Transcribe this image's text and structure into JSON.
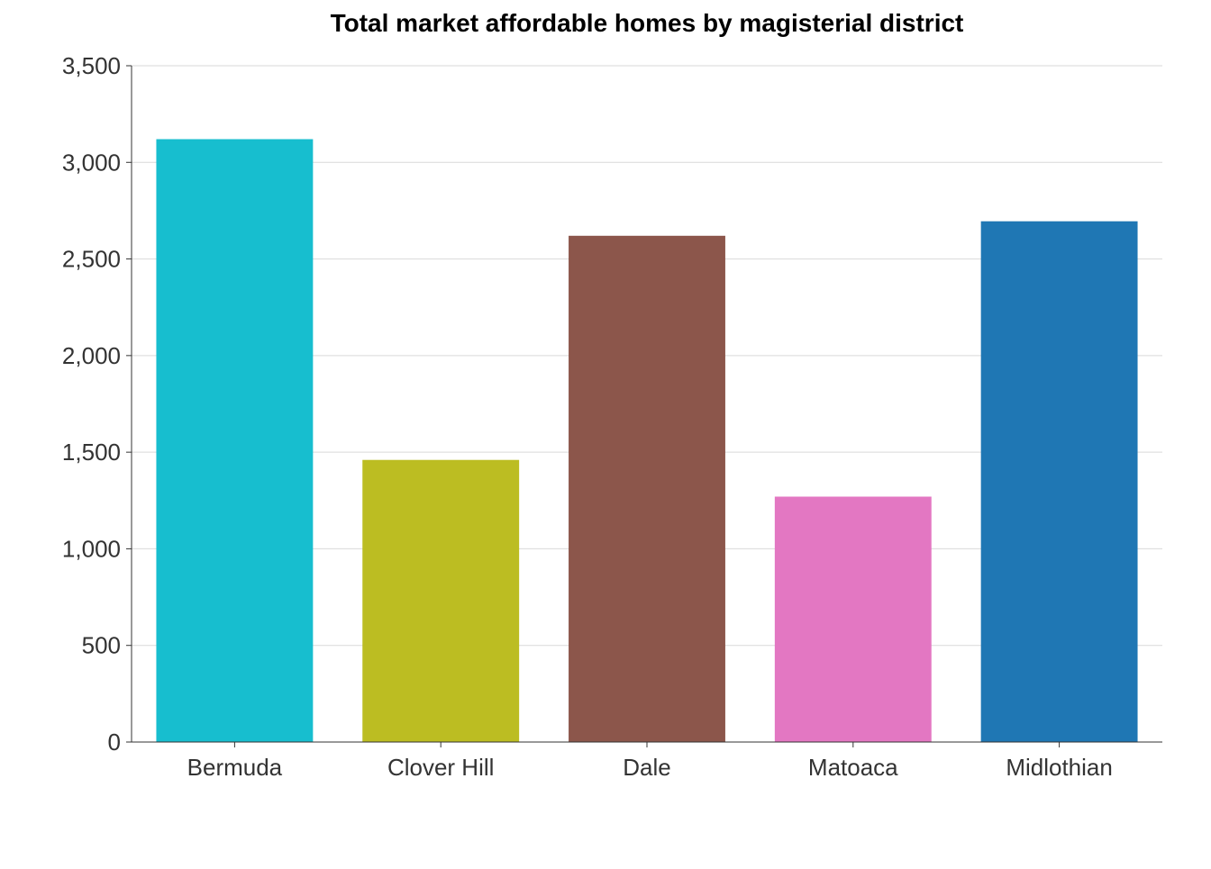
{
  "chart_data": {
    "type": "bar",
    "title": "Total market affordable homes by magisterial district",
    "xlabel": "",
    "ylabel": "",
    "categories": [
      "Bermuda",
      "Clover Hill",
      "Dale",
      "Matoaca",
      "Midlothian"
    ],
    "values": [
      3120,
      1460,
      2620,
      1270,
      2695
    ],
    "colors": [
      "#17becf",
      "#bcbd22",
      "#8c564b",
      "#e377c2",
      "#1f77b4"
    ],
    "ylim": [
      0,
      3500
    ],
    "yticks": [
      0,
      500,
      1000,
      1500,
      2000,
      2500,
      3000,
      3500
    ],
    "ytick_labels": [
      "0",
      "500",
      "1,000",
      "1,500",
      "2,000",
      "2,500",
      "3,000",
      "3,500"
    ],
    "grid": "horizontal",
    "legend": "none"
  }
}
